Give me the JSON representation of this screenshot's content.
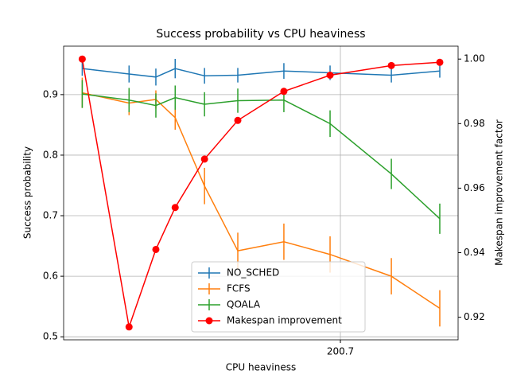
{
  "chart_data": {
    "type": "line",
    "title": "Success probability vs CPU heaviness",
    "xlabel": "CPU heaviness",
    "ylabel": "Success probability",
    "y2label": "Makespan improvement factor",
    "xscale": "log",
    "x": [
      38.1,
      51.5,
      61.2,
      69.3,
      83.7,
      103.7,
      139.5,
      187.8,
      278.6,
      380.5
    ],
    "xlim": [
      33.8,
      428.1
    ],
    "xticks": [
      200.7
    ],
    "ylim": [
      0.495,
      0.98
    ],
    "yticks": [
      0.5,
      0.6,
      0.7,
      0.8,
      0.9
    ],
    "y2lim": [
      0.913,
      1.004
    ],
    "y2ticks": [
      0.92,
      0.94,
      0.96,
      0.98,
      {
        "value": 1,
        "label": "1.00"
      }
    ],
    "grid": true,
    "legend": "lower center",
    "series": [
      {
        "name": "NO_SCHED",
        "color": "#1f77b4",
        "values": [
          0.943,
          0.934,
          0.929,
          0.943,
          0.931,
          0.932,
          0.939,
          0.936,
          0.932,
          0.939
        ],
        "errors": [
          0.012,
          0.014,
          0.014,
          0.016,
          0.013,
          0.012,
          0.013,
          0.012,
          0.012,
          0.011
        ]
      },
      {
        "name": "FCFS",
        "color": "#ff7f0e",
        "values": [
          0.903,
          0.886,
          0.892,
          0.862,
          0.749,
          0.642,
          0.657,
          0.636,
          0.6,
          0.547
        ],
        "errors": [
          0.025,
          0.02,
          0.015,
          0.02,
          0.03,
          0.03,
          0.03,
          0.03,
          0.03,
          0.03
        ]
      },
      {
        "name": "QOALA",
        "color": "#2ca02c",
        "values": [
          0.901,
          0.891,
          0.882,
          0.895,
          0.884,
          0.89,
          0.891,
          0.852,
          0.769,
          0.695
        ],
        "errors": [
          0.023,
          0.02,
          0.02,
          0.02,
          0.02,
          0.02,
          0.02,
          0.022,
          0.025,
          0.025
        ]
      },
      {
        "name": "Makespan improvement",
        "color": "#ff0000",
        "axis": "y2",
        "marker": "circle",
        "values": [
          1.0,
          0.917,
          0.941,
          0.954,
          0.969,
          0.981,
          0.99,
          0.995,
          0.998,
          0.999
        ]
      }
    ]
  }
}
